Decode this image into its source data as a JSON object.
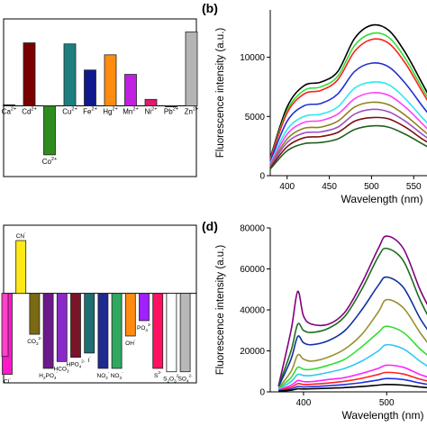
{
  "chart_data": [
    {
      "panel": "a",
      "type": "bar",
      "categories": [
        "Ca2+",
        "Cd2+",
        "Co2+",
        "Cu2+",
        "Fe2+",
        "Hg2+",
        "Mn2+",
        "Ni2+",
        "Pb2+",
        "Zn2+"
      ],
      "category_labels": [
        {
          "base": "Ca",
          "sup": "2+"
        },
        {
          "base": "Cd",
          "sup": "2+"
        },
        {
          "base": "Co",
          "sup": "2+"
        },
        {
          "base": "Cu",
          "sup": "2+"
        },
        {
          "base": "Fe",
          "sup": "2+"
        },
        {
          "base": "Hg",
          "sup": "2+"
        },
        {
          "base": "Mn",
          "sup": "2+"
        },
        {
          "base": "Ni",
          "sup": "2+"
        },
        {
          "base": "Pb",
          "sup": "2+"
        },
        {
          "base": "Zn",
          "sup": "2+"
        }
      ],
      "values": [
        0.01,
        0.58,
        -0.45,
        0.57,
        0.33,
        0.47,
        0.29,
        0.06,
        0.0,
        0.68
      ],
      "colors": [
        "#1a1a1a",
        "#7b0000",
        "#2e8b1e",
        "#1e7f80",
        "#101a8c",
        "#ff8c10",
        "#c020e0",
        "#e0186e",
        "#303030",
        "#b4b4b4"
      ],
      "ylim": [
        -0.65,
        0.8
      ],
      "title": "",
      "xlabel": "",
      "ylabel": ""
    },
    {
      "panel": "b",
      "type": "line",
      "panel_label": "(b)",
      "xlabel": "Wavelength (nm)",
      "ylabel": "Fluorescence intensity (a.u.)",
      "xlim": [
        380,
        570
      ],
      "ylim": [
        0,
        14000
      ],
      "x_ticks": [
        400,
        450,
        500,
        550
      ],
      "x_tick_labels": [
        "400",
        "450",
        "500",
        "550"
      ],
      "y_ticks": [
        0,
        5000,
        10000
      ],
      "x": [
        380,
        400,
        420,
        440,
        460,
        480,
        500,
        520,
        540,
        560,
        570
      ],
      "series": [
        {
          "color": "#000000",
          "values": [
            1500,
            5800,
            7600,
            7900,
            8800,
            11600,
            12700,
            12300,
            10400,
            7800,
            6500
          ]
        },
        {
          "color": "#30e030",
          "values": [
            1400,
            5500,
            7200,
            7500,
            8400,
            11000,
            12000,
            11700,
            9900,
            7400,
            6200
          ]
        },
        {
          "color": "#ff2020",
          "values": [
            1350,
            5300,
            6900,
            7200,
            8100,
            10500,
            11500,
            11200,
            9500,
            7100,
            5900
          ]
        },
        {
          "color": "#2030d0",
          "values": [
            1200,
            4600,
            5900,
            6100,
            6900,
            8800,
            9500,
            9200,
            7800,
            5900,
            5000
          ]
        },
        {
          "color": "#30e8f0",
          "values": [
            1050,
            3900,
            5000,
            5200,
            5800,
            7400,
            7900,
            7700,
            6500,
            4900,
            4200
          ]
        },
        {
          "color": "#ff40ff",
          "values": [
            950,
            3500,
            4500,
            4650,
            5200,
            6500,
            7000,
            6800,
            5800,
            4400,
            3700
          ]
        },
        {
          "color": "#8c8020",
          "values": [
            850,
            3100,
            4000,
            4100,
            4600,
            5800,
            6200,
            6000,
            5100,
            3900,
            3300
          ]
        },
        {
          "color": "#a050c0",
          "values": [
            750,
            2800,
            3600,
            3700,
            4100,
            5200,
            5600,
            5400,
            4600,
            3500,
            3000
          ]
        },
        {
          "color": "#7a1010",
          "values": [
            650,
            2450,
            3200,
            3300,
            3650,
            4600,
            4900,
            4800,
            4100,
            3100,
            2700
          ]
        },
        {
          "color": "#206020",
          "values": [
            550,
            2100,
            2700,
            2800,
            3100,
            3900,
            4200,
            4100,
            3500,
            2700,
            2300
          ]
        }
      ]
    },
    {
      "panel": "c",
      "type": "bar",
      "categories": [
        "Cl-",
        "CN-",
        "CO3 2-",
        "H2PO4-",
        "HCO3-",
        "HPO4 2-",
        "I-",
        "NO2-",
        "NO3-",
        "OH-",
        "PO4 3-",
        "S2-",
        "S2O3 2-",
        "SO4 2-"
      ],
      "category_labels": [
        {
          "base": "Cl",
          "sup": "-"
        },
        {
          "base": "CN",
          "sup": "-"
        },
        {
          "base": "CO",
          "sub": "3",
          "sup": "2-"
        },
        {
          "base": "H",
          "sub": "2",
          "base2": "PO",
          "sub2": "4",
          "sup": "-"
        },
        {
          "base": "HCO",
          "sub": "3",
          "sup": "-"
        },
        {
          "base": "HPO",
          "sub": "4",
          "sup": "2-"
        },
        {
          "base": "I",
          "sup": "-"
        },
        {
          "base": "NO",
          "sub": "2",
          "sup": "-"
        },
        {
          "base": "NO",
          "sub": "3",
          "sup": "-"
        },
        {
          "base": "OH",
          "sup": "-"
        },
        {
          "base": "PO",
          "sub": "4",
          "sup": "3-"
        },
        {
          "base": "S",
          "sup": "2-"
        },
        {
          "base": "S",
          "sub": "2",
          "base2": "O",
          "sub2": "3",
          "sup": "2-"
        },
        {
          "base": "SO",
          "sub": "4",
          "sup": "2-"
        }
      ],
      "values": [
        -0.95,
        0.62,
        -0.48,
        -0.88,
        -0.8,
        -0.75,
        -0.7,
        -0.88,
        -0.88,
        -0.5,
        -0.32,
        -0.88,
        -0.92,
        -0.92
      ],
      "colors": [
        "#ff18c8",
        "#ffe814",
        "#7a6a14",
        "#6a1a8a",
        "#8a2ac8",
        "#7a1428",
        "#1e6e72",
        "#1e2a8e",
        "#30a860",
        "#ff8c10",
        "#a020ff",
        "#ff1060",
        "#ffffff",
        "#b8b8b8"
      ],
      "extra_bars": [
        {
          "value": -0.74,
          "color": "#ff40c8",
          "position": "left-edge"
        }
      ],
      "ylim": [
        -1.05,
        0.8
      ],
      "title": "",
      "xlabel": "",
      "ylabel": ""
    },
    {
      "panel": "d",
      "type": "line",
      "panel_label": "(d)",
      "xlabel": "Wavelength (nm)",
      "ylabel": "Fluorescence intensity (a.u.)",
      "xlim": [
        360,
        555
      ],
      "ylim": [
        0,
        80000
      ],
      "x_ticks": [
        400,
        500
      ],
      "x_tick_labels": [
        "400",
        "500"
      ],
      "y_ticks": [
        0,
        20000,
        40000,
        60000,
        80000
      ],
      "x": [
        370,
        385,
        393,
        400,
        410,
        430,
        450,
        470,
        490,
        500,
        520,
        540,
        555
      ],
      "series": [
        {
          "color": "#800080",
          "values": [
            3000,
            30000,
            49000,
            37000,
            33000,
            33000,
            39000,
            53000,
            70000,
            76000,
            70000,
            50000,
            38000
          ]
        },
        {
          "color": "#1e6e1e",
          "values": [
            2800,
            20000,
            33000,
            30000,
            29000,
            31000,
            37000,
            50000,
            66000,
            70000,
            64000,
            45000,
            33000
          ]
        },
        {
          "color": "#1030a0",
          "values": [
            2500,
            16000,
            27000,
            24000,
            23000,
            25000,
            30000,
            40000,
            52000,
            56000,
            51000,
            36000,
            27000
          ]
        },
        {
          "color": "#9a9030",
          "values": [
            1800,
            10000,
            18000,
            16000,
            15000,
            17000,
            21000,
            28000,
            39000,
            45000,
            41000,
            29000,
            21000
          ]
        },
        {
          "color": "#30e030",
          "values": [
            1500,
            7000,
            12000,
            11000,
            11000,
            13000,
            16000,
            22000,
            29000,
            32000,
            29000,
            21000,
            16000
          ]
        },
        {
          "color": "#30c8f0",
          "values": [
            1200,
            5000,
            8500,
            8000,
            8000,
            9500,
            11500,
            15000,
            20000,
            23000,
            21000,
            15000,
            11000
          ]
        },
        {
          "color": "#ff20ff",
          "values": [
            900,
            3200,
            5500,
            5000,
            5000,
            6000,
            7000,
            9000,
            11500,
            13000,
            12000,
            8500,
            6500
          ]
        },
        {
          "color": "#ff2020",
          "values": [
            700,
            2200,
            4000,
            3600,
            3700,
            4300,
            5200,
            6600,
            8500,
            9500,
            8700,
            6200,
            4800
          ]
        },
        {
          "color": "#2030e0",
          "values": [
            500,
            1400,
            2600,
            2400,
            2500,
            3000,
            3600,
            4500,
            5800,
            6500,
            6000,
            4300,
            3300
          ]
        },
        {
          "color": "#000000",
          "values": [
            300,
            800,
            1500,
            1400,
            1500,
            1800,
            2100,
            2600,
            3300,
            3600,
            3300,
            2400,
            1800
          ]
        }
      ]
    }
  ]
}
